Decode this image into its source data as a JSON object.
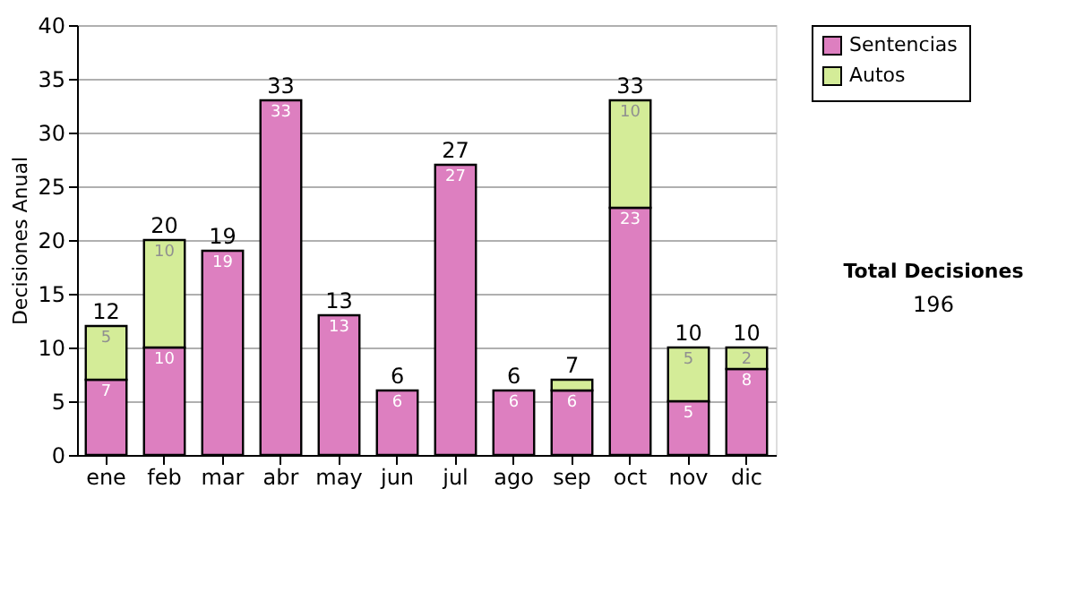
{
  "chart_data": {
    "type": "bar",
    "stacked": true,
    "ylabel": "Decisiones Anual",
    "categories": [
      "ene",
      "feb",
      "mar",
      "abr",
      "may",
      "jun",
      "jul",
      "ago",
      "sep",
      "oct",
      "nov",
      "dic"
    ],
    "series": [
      {
        "name": "Sentencias",
        "color": "#dd7fc0",
        "values": [
          7,
          10,
          19,
          33,
          13,
          6,
          27,
          6,
          6,
          23,
          5,
          8
        ],
        "value_labels": [
          "7",
          "10",
          "19",
          "33",
          "13",
          "6",
          "27",
          "6",
          "6",
          "23",
          "5",
          "8"
        ]
      },
      {
        "name": "Autos",
        "color": "#d4ec98",
        "values": [
          5,
          10,
          0,
          0,
          0,
          0,
          0,
          0,
          1,
          10,
          5,
          2
        ],
        "value_labels": [
          "5",
          "10",
          null,
          null,
          null,
          null,
          null,
          null,
          null,
          "10",
          "5",
          "2"
        ]
      }
    ],
    "totals": [
      "12",
      "20",
      "19",
      "33",
      "13",
      "6",
      "27",
      "6",
      "7",
      "33",
      "10",
      "10"
    ],
    "ylim": [
      0,
      40
    ],
    "yticks": [
      0,
      5,
      10,
      15,
      20,
      25,
      30,
      35,
      40
    ],
    "grid": "y",
    "legend": "right",
    "annotations": [
      "Total Decisiones",
      "196"
    ]
  }
}
